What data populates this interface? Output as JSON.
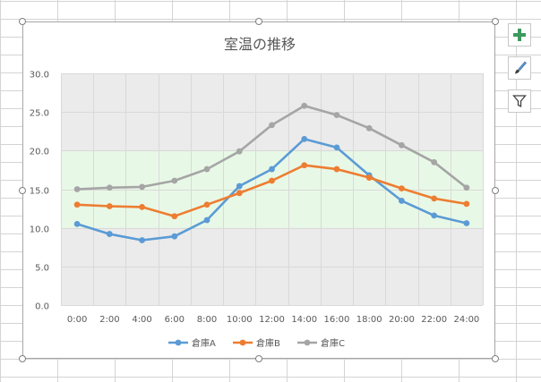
{
  "chart_data": {
    "type": "line",
    "title": "室温の推移",
    "categories": [
      "0:00",
      "2:00",
      "4:00",
      "6:00",
      "8:00",
      "10:00",
      "12:00",
      "14:00",
      "16:00",
      "18:00",
      "20:00",
      "22:00",
      "24:00"
    ],
    "series": [
      {
        "name": "倉庫A",
        "color": "#5b9bd5",
        "values": [
          10.5,
          9.2,
          8.4,
          8.9,
          11.0,
          15.4,
          17.6,
          21.5,
          20.4,
          16.8,
          13.5,
          11.6,
          10.6
        ]
      },
      {
        "name": "倉庫B",
        "color": "#ed7d31",
        "values": [
          13.0,
          12.8,
          12.7,
          11.5,
          13.0,
          14.5,
          16.1,
          18.1,
          17.6,
          16.5,
          15.1,
          13.8,
          13.1
        ]
      },
      {
        "name": "倉庫C",
        "color": "#a5a5a5",
        "values": [
          15.0,
          15.2,
          15.3,
          16.1,
          17.6,
          19.9,
          23.3,
          25.8,
          24.6,
          22.9,
          20.7,
          18.5,
          15.2
        ]
      }
    ],
    "ylim": [
      0,
      30
    ],
    "yticks": [
      "0.0",
      "5.0",
      "10.0",
      "15.0",
      "20.0",
      "25.0",
      "30.0"
    ],
    "comfort_band": [
      10,
      20
    ],
    "comfort_band_color": "#e8f8e6",
    "plot_bg_color": "#ebebeb",
    "grid": true,
    "legend_position": "bottom"
  },
  "chart_tools": {
    "buttons": [
      {
        "icon": "plus-icon",
        "label": "Chart Elements"
      },
      {
        "icon": "brush-icon",
        "label": "Chart Styles"
      },
      {
        "icon": "filter-icon",
        "label": "Chart Filters"
      }
    ],
    "accent_color": "#3c9a5f"
  }
}
